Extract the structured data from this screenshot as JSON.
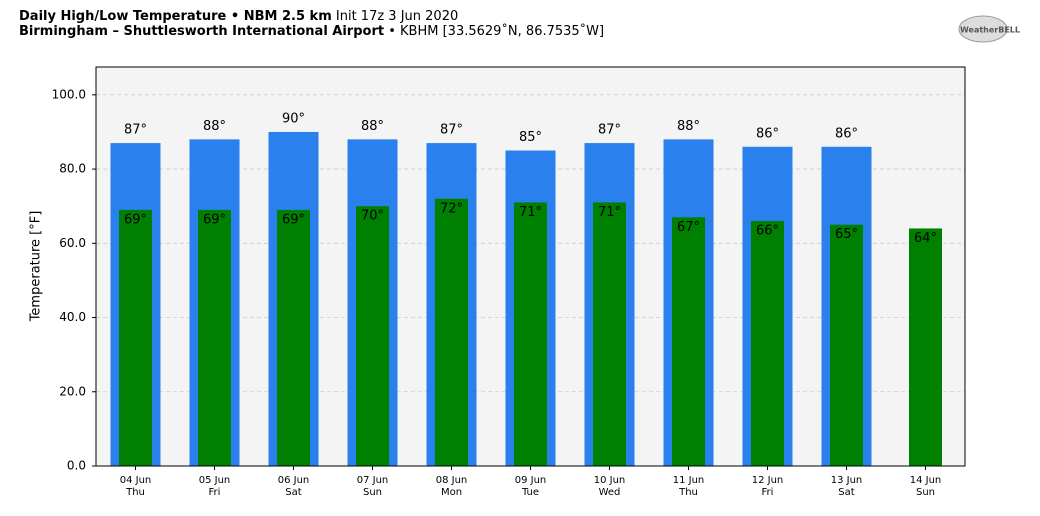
{
  "chart_data": {
    "type": "bar",
    "title": "Daily High/Low Temperature • NBM 2.5 km",
    "title_note": "Init 17z 3 Jun 2020",
    "subtitle": "Birmingham – Shuttlesworth International Airport",
    "subtitle_note": "• KBHM [33.5629˚N, 86.7535˚W]",
    "logo": "WeatherBELL",
    "y_label": "Temperature [°F]",
    "categories": [
      "04 Jun",
      "05 Jun",
      "06 Jun",
      "07 Jun",
      "08 Jun",
      "09 Jun",
      "10 Jun",
      "11 Jun",
      "12 Jun",
      "13 Jun",
      "14 Jun"
    ],
    "weekdays": [
      "Thu",
      "Fri",
      "Sat",
      "Sun",
      "Mon",
      "Tue",
      "Wed",
      "Thu",
      "Fri",
      "Sat",
      "Sun"
    ],
    "series": [
      {
        "color": "#2a80ec",
        "values": [
          87,
          88,
          90,
          88,
          87,
          85,
          87,
          88,
          86,
          86,
          null
        ],
        "value_labels": [
          "87°",
          "88°",
          "90°",
          "88°",
          "87°",
          "85°",
          "87°",
          "88°",
          "86°",
          "86°",
          null
        ]
      },
      {
        "color": "#008000",
        "values": [
          69,
          69,
          69,
          70,
          72,
          71,
          71,
          67,
          66,
          65,
          64
        ],
        "value_labels": [
          "69°",
          "69°",
          "69°",
          "70°",
          "72°",
          "71°",
          "71°",
          "67°",
          "66°",
          "65°",
          "64°"
        ]
      }
    ],
    "ylim": [
      0,
      107.5
    ],
    "yticks": [
      {
        "value": 0,
        "label": "0.0"
      },
      {
        "value": 20,
        "label": "20.0"
      },
      {
        "value": 40,
        "label": "40.0"
      },
      {
        "value": 60,
        "label": "60.0"
      },
      {
        "value": 80,
        "label": "80.0"
      },
      {
        "value": 100,
        "label": "100.0"
      }
    ],
    "grid": true
  }
}
